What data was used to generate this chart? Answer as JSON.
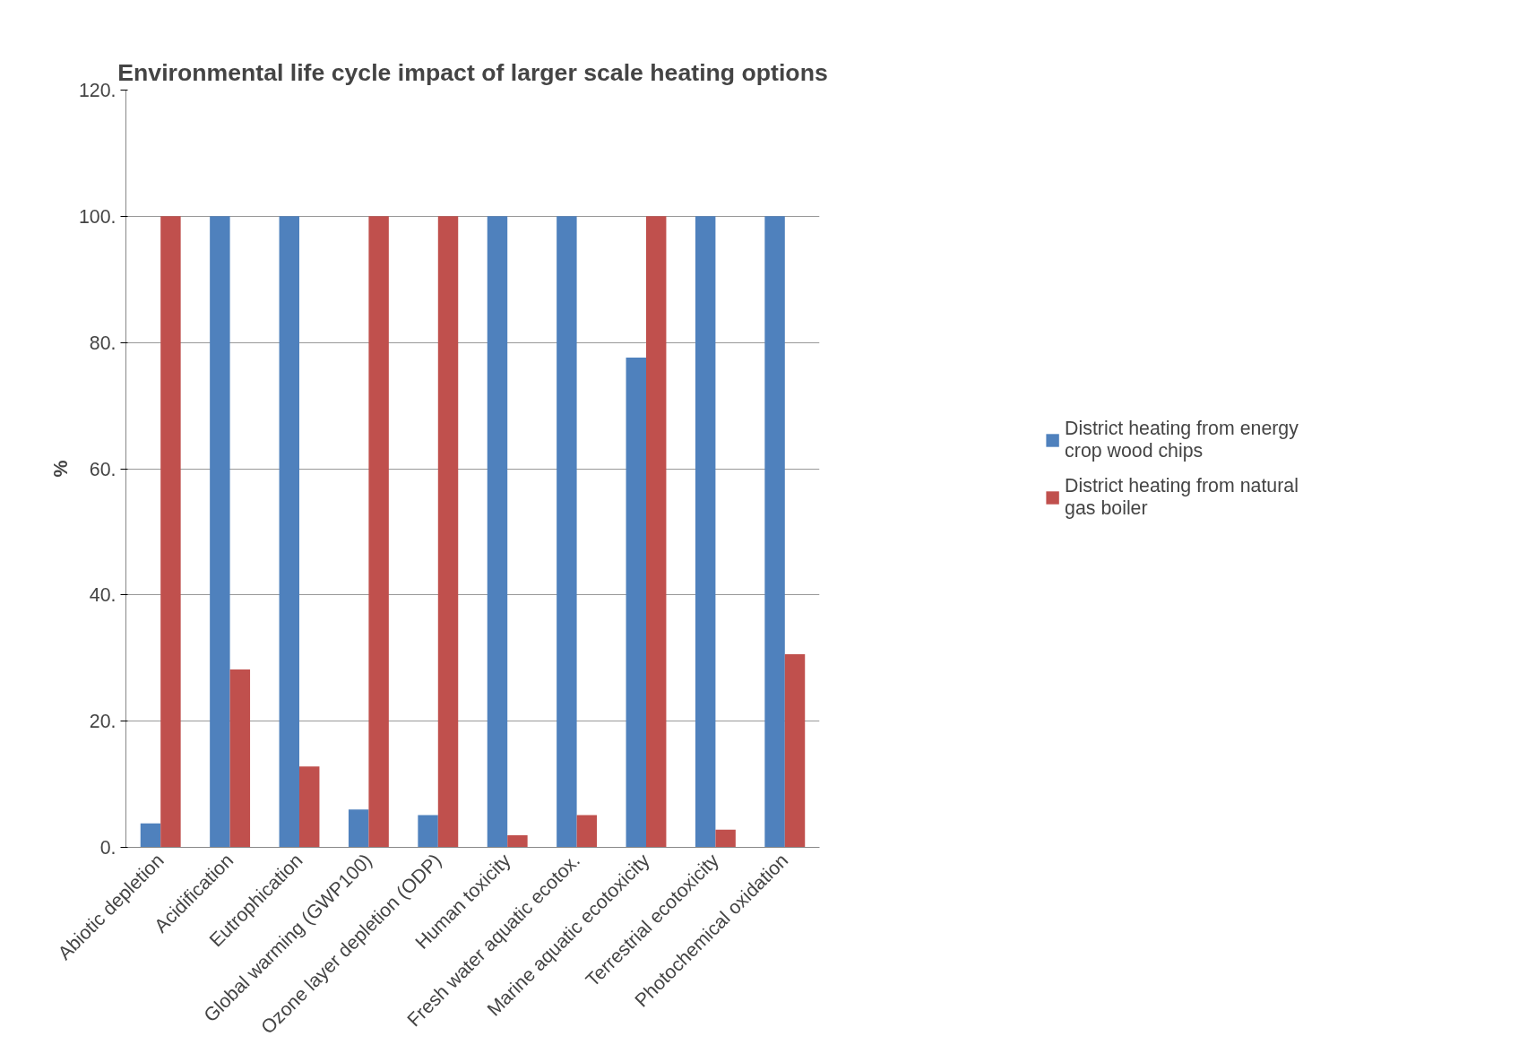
{
  "chart_data": {
    "type": "bar",
    "title": "Environmental life cycle impact of larger scale heating options",
    "ylabel": "%",
    "categories": [
      "Abiotic depletion",
      "Acidification",
      "Eutrophication",
      "Global warming (GWP100)",
      "Ozone layer depletion (ODP)",
      "Human toxicity",
      "Fresh water aquatic ecotox.",
      "Marine aquatic ecotoxicity",
      "Terrestrial ecotoxicity",
      "Photochemical oxidation"
    ],
    "series": [
      {
        "name": "District heating from energy crop wood chips",
        "color": "#4f81bd",
        "values": [
          3.8,
          100,
          100,
          6.0,
          5.1,
          100,
          100,
          77.6,
          100,
          100
        ]
      },
      {
        "name": "District heating from natural gas boiler",
        "color": "#c0504d",
        "values": [
          100,
          28.2,
          12.8,
          100,
          100,
          1.9,
          5.1,
          100,
          2.8,
          30.6
        ]
      }
    ],
    "ylim": [
      0,
      120
    ],
    "yticks": [
      {
        "value": 0,
        "label": "0."
      },
      {
        "value": 20,
        "label": "20."
      },
      {
        "value": 40,
        "label": "40."
      },
      {
        "value": 60,
        "label": "60."
      },
      {
        "value": 80,
        "label": "80."
      },
      {
        "value": 100,
        "label": "100."
      },
      {
        "value": 120,
        "label": "120."
      }
    ],
    "grid": "y",
    "legend": "right"
  }
}
